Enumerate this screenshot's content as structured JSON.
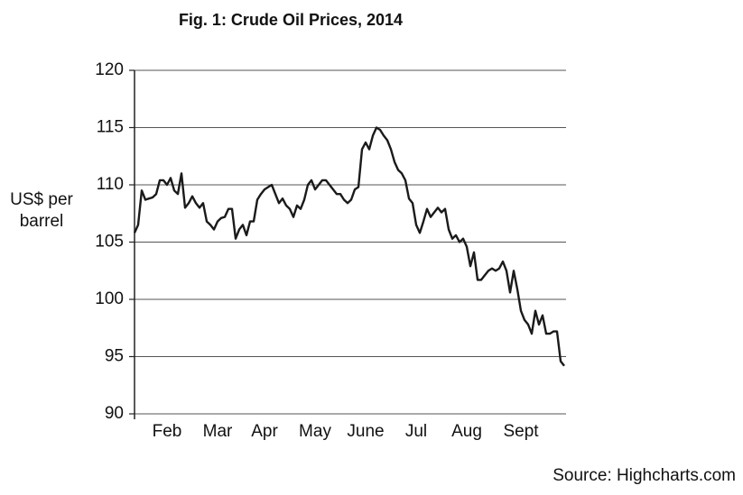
{
  "chart_data": {
    "type": "line",
    "title": "Fig. 1: Crude Oil Prices, 2014",
    "y_label": "US$ per barrel",
    "source": "Source: Highcharts.com",
    "categories": [
      null,
      null,
      null,
      null,
      null,
      null,
      null,
      null,
      null,
      "Feb",
      null,
      null,
      null,
      null,
      null,
      null,
      null,
      null,
      null,
      null,
      null,
      null,
      null,
      "Mar",
      null,
      null,
      null,
      null,
      null,
      null,
      null,
      null,
      null,
      null,
      null,
      null,
      "Apr",
      null,
      null,
      null,
      null,
      null,
      null,
      null,
      null,
      null,
      null,
      null,
      null,
      null,
      "May",
      null,
      null,
      null,
      null,
      null,
      null,
      null,
      null,
      null,
      null,
      null,
      null,
      null,
      "June",
      null,
      null,
      null,
      null,
      null,
      null,
      null,
      null,
      null,
      null,
      null,
      null,
      null,
      "Jul",
      null,
      null,
      null,
      null,
      null,
      null,
      null,
      null,
      null,
      null,
      null,
      null,
      null,
      "Aug",
      null,
      null,
      null,
      null,
      null,
      null,
      null,
      null,
      null,
      null,
      null,
      null,
      null,
      null,
      "Sept",
      null,
      null,
      null,
      null,
      null,
      null,
      null,
      null,
      null,
      null,
      null,
      null
    ],
    "series": [
      {
        "name": "Crude oil",
        "color": "#1a1a1a",
        "values": [
          105.8,
          106.5,
          109.5,
          108.7,
          108.8,
          108.9,
          109.2,
          110.4,
          110.4,
          110.0,
          110.6,
          109.5,
          109.2,
          111.0,
          108.0,
          108.4,
          109.0,
          108.4,
          108.0,
          108.4,
          106.8,
          106.5,
          106.1,
          106.8,
          107.1,
          107.2,
          107.9,
          107.9,
          105.3,
          106.1,
          106.5,
          105.6,
          106.8,
          106.8,
          108.7,
          109.2,
          109.6,
          109.8,
          110.0,
          109.2,
          108.4,
          108.8,
          108.2,
          107.9,
          107.2,
          108.2,
          107.9,
          108.7,
          110.0,
          110.4,
          109.6,
          110.0,
          110.4,
          110.4,
          110.0,
          109.6,
          109.2,
          109.2,
          108.7,
          108.4,
          108.7,
          109.6,
          109.8,
          113.1,
          113.7,
          113.1,
          114.3,
          115.0,
          114.8,
          114.3,
          113.9,
          113.1,
          112.0,
          111.3,
          111.0,
          110.4,
          108.8,
          108.4,
          106.5,
          105.8,
          106.8,
          107.9,
          107.2,
          107.6,
          108.0,
          107.6,
          107.9,
          106.1,
          105.3,
          105.6,
          105.0,
          105.3,
          104.6,
          102.9,
          104.1,
          101.7,
          101.7,
          102.1,
          102.5,
          102.7,
          102.5,
          102.7,
          103.3,
          102.5,
          100.6,
          102.5,
          100.9,
          99.0,
          98.2,
          97.8,
          97.0,
          99.0,
          97.8,
          98.6,
          97.0,
          97.0,
          97.2,
          97.2,
          94.6,
          94.2
        ]
      }
    ],
    "ylim": [
      90,
      120
    ],
    "yticks": [
      90,
      95,
      100,
      105,
      110,
      115,
      120
    ],
    "grid": true
  }
}
